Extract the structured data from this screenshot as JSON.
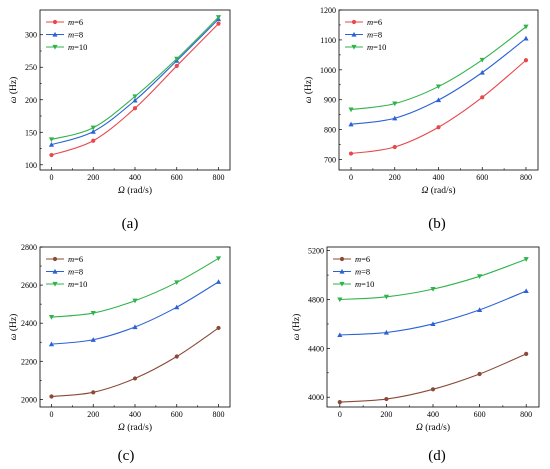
{
  "chart_data": [
    {
      "type": "line",
      "panel_label": "(a)",
      "x": [
        0,
        200,
        400,
        600,
        800
      ],
      "xticks": [
        "0",
        "200",
        "400",
        "600",
        "800"
      ],
      "yticks": [
        100,
        150,
        200,
        250,
        300
      ],
      "ylim": [
        92,
        338
      ],
      "xlim": [
        -55,
        855
      ],
      "xlabel": "Ω (rad/s)",
      "ylabel": "ω (Hz)",
      "legend_position": "top-left",
      "series": [
        {
          "name": "m=6",
          "marker": "circle",
          "values": [
            115,
            137,
            187,
            252,
            317
          ]
        },
        {
          "name": "m=8",
          "marker": "triangle-up",
          "values": [
            131,
            151,
            199,
            260,
            324
          ]
        },
        {
          "name": "m=10",
          "marker": "triangle-down",
          "values": [
            139,
            157,
            205,
            263,
            327
          ]
        }
      ]
    },
    {
      "type": "line",
      "panel_label": "(b)",
      "x": [
        0,
        200,
        400,
        600,
        800
      ],
      "xticks": [
        "0",
        "200",
        "400",
        "600",
        "800"
      ],
      "yticks": [
        700,
        800,
        900,
        1000,
        1100,
        1200
      ],
      "ylim": [
        665,
        1200
      ],
      "xlim": [
        -55,
        855
      ],
      "xlabel": "Ω (rad/s)",
      "ylabel": "ω (Hz)",
      "legend_position": "top-left",
      "series": [
        {
          "name": "m=6",
          "marker": "circle",
          "values": [
            720,
            742,
            808,
            908,
            1032
          ]
        },
        {
          "name": "m=8",
          "marker": "triangle-up",
          "values": [
            818,
            838,
            899,
            991,
            1105
          ]
        },
        {
          "name": "m=10",
          "marker": "triangle-down",
          "values": [
            867,
            887,
            944,
            1033,
            1144
          ]
        }
      ]
    },
    {
      "type": "line",
      "panel_label": "(c)",
      "x": [
        0,
        200,
        400,
        600,
        800
      ],
      "xticks": [
        "0",
        "200",
        "400",
        "600",
        "800"
      ],
      "yticks": [
        2000,
        2200,
        2400,
        2600,
        2800
      ],
      "ylim": [
        1960,
        2800
      ],
      "xlim": [
        -55,
        855
      ],
      "xlabel": "Ω (rad/s)",
      "ylabel": "ω (Hz)",
      "legend_position": "top-left",
      "series": [
        {
          "name": "m=6",
          "marker": "circle",
          "values": [
            2015,
            2037,
            2110,
            2225,
            2375
          ]
        },
        {
          "name": "m=8",
          "marker": "triangle-up",
          "values": [
            2290,
            2313,
            2380,
            2484,
            2617
          ]
        },
        {
          "name": "m=10",
          "marker": "triangle-down",
          "values": [
            2432,
            2453,
            2518,
            2614,
            2740
          ]
        }
      ]
    },
    {
      "type": "line",
      "panel_label": "(d)",
      "x": [
        0,
        200,
        400,
        600,
        800
      ],
      "xticks": [
        "0",
        "200",
        "400",
        "600",
        "800"
      ],
      "yticks": [
        4000,
        4400,
        4800,
        5200
      ],
      "ylim": [
        3920,
        5230
      ],
      "xlim": [
        -55,
        855
      ],
      "xlabel": "Ω (rad/s)",
      "ylabel": "ω (Hz)",
      "legend_position": "top-left",
      "series": [
        {
          "name": "m=6",
          "marker": "circle",
          "values": [
            3960,
            3985,
            4065,
            4190,
            4355
          ]
        },
        {
          "name": "m=8",
          "marker": "triangle-up",
          "values": [
            4510,
            4530,
            4600,
            4715,
            4870
          ]
        },
        {
          "name": "m=10",
          "marker": "triangle-down",
          "values": [
            4800,
            4822,
            4885,
            4990,
            5130
          ]
        }
      ]
    }
  ],
  "colors": {
    "m=6": "#e8474b",
    "m=8": "#2b63d6",
    "m=10": "#2fb34a",
    "m=6_alt": "#8b4a36"
  }
}
